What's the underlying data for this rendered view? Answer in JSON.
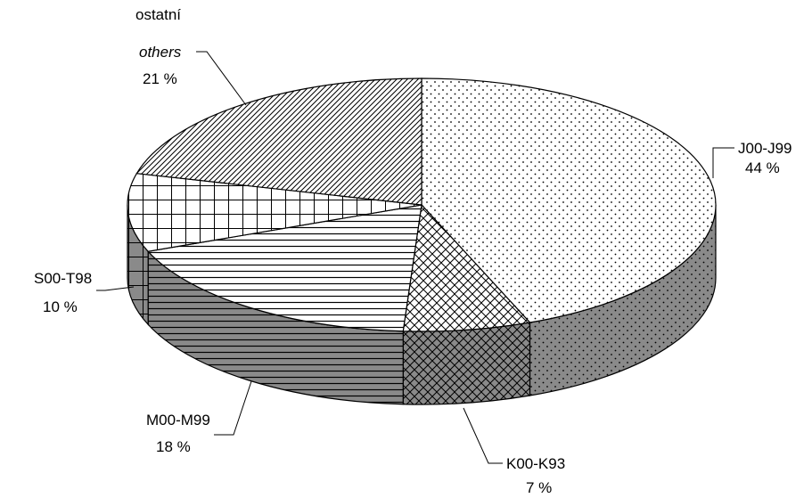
{
  "chart_data": {
    "type": "pie",
    "style": "3d",
    "start_angle_deg": 90,
    "direction": "clockwise",
    "slices": [
      {
        "label": "J00-J99",
        "value": 44,
        "value_label": "44 %",
        "pattern": "dots"
      },
      {
        "label": "K00-K93",
        "value": 7,
        "value_label": "7 %",
        "pattern": "crosshatch"
      },
      {
        "label": "M00-M99",
        "value": 18,
        "value_label": "18 %",
        "pattern": "horizontal-lines"
      },
      {
        "label": "S00-T98",
        "value": 10,
        "value_label": "10 %",
        "pattern": "grid"
      },
      {
        "label": "ostatní",
        "label_secondary": "others",
        "value": 21,
        "value_label": "21 %",
        "pattern": "diagonal-lines"
      }
    ]
  }
}
